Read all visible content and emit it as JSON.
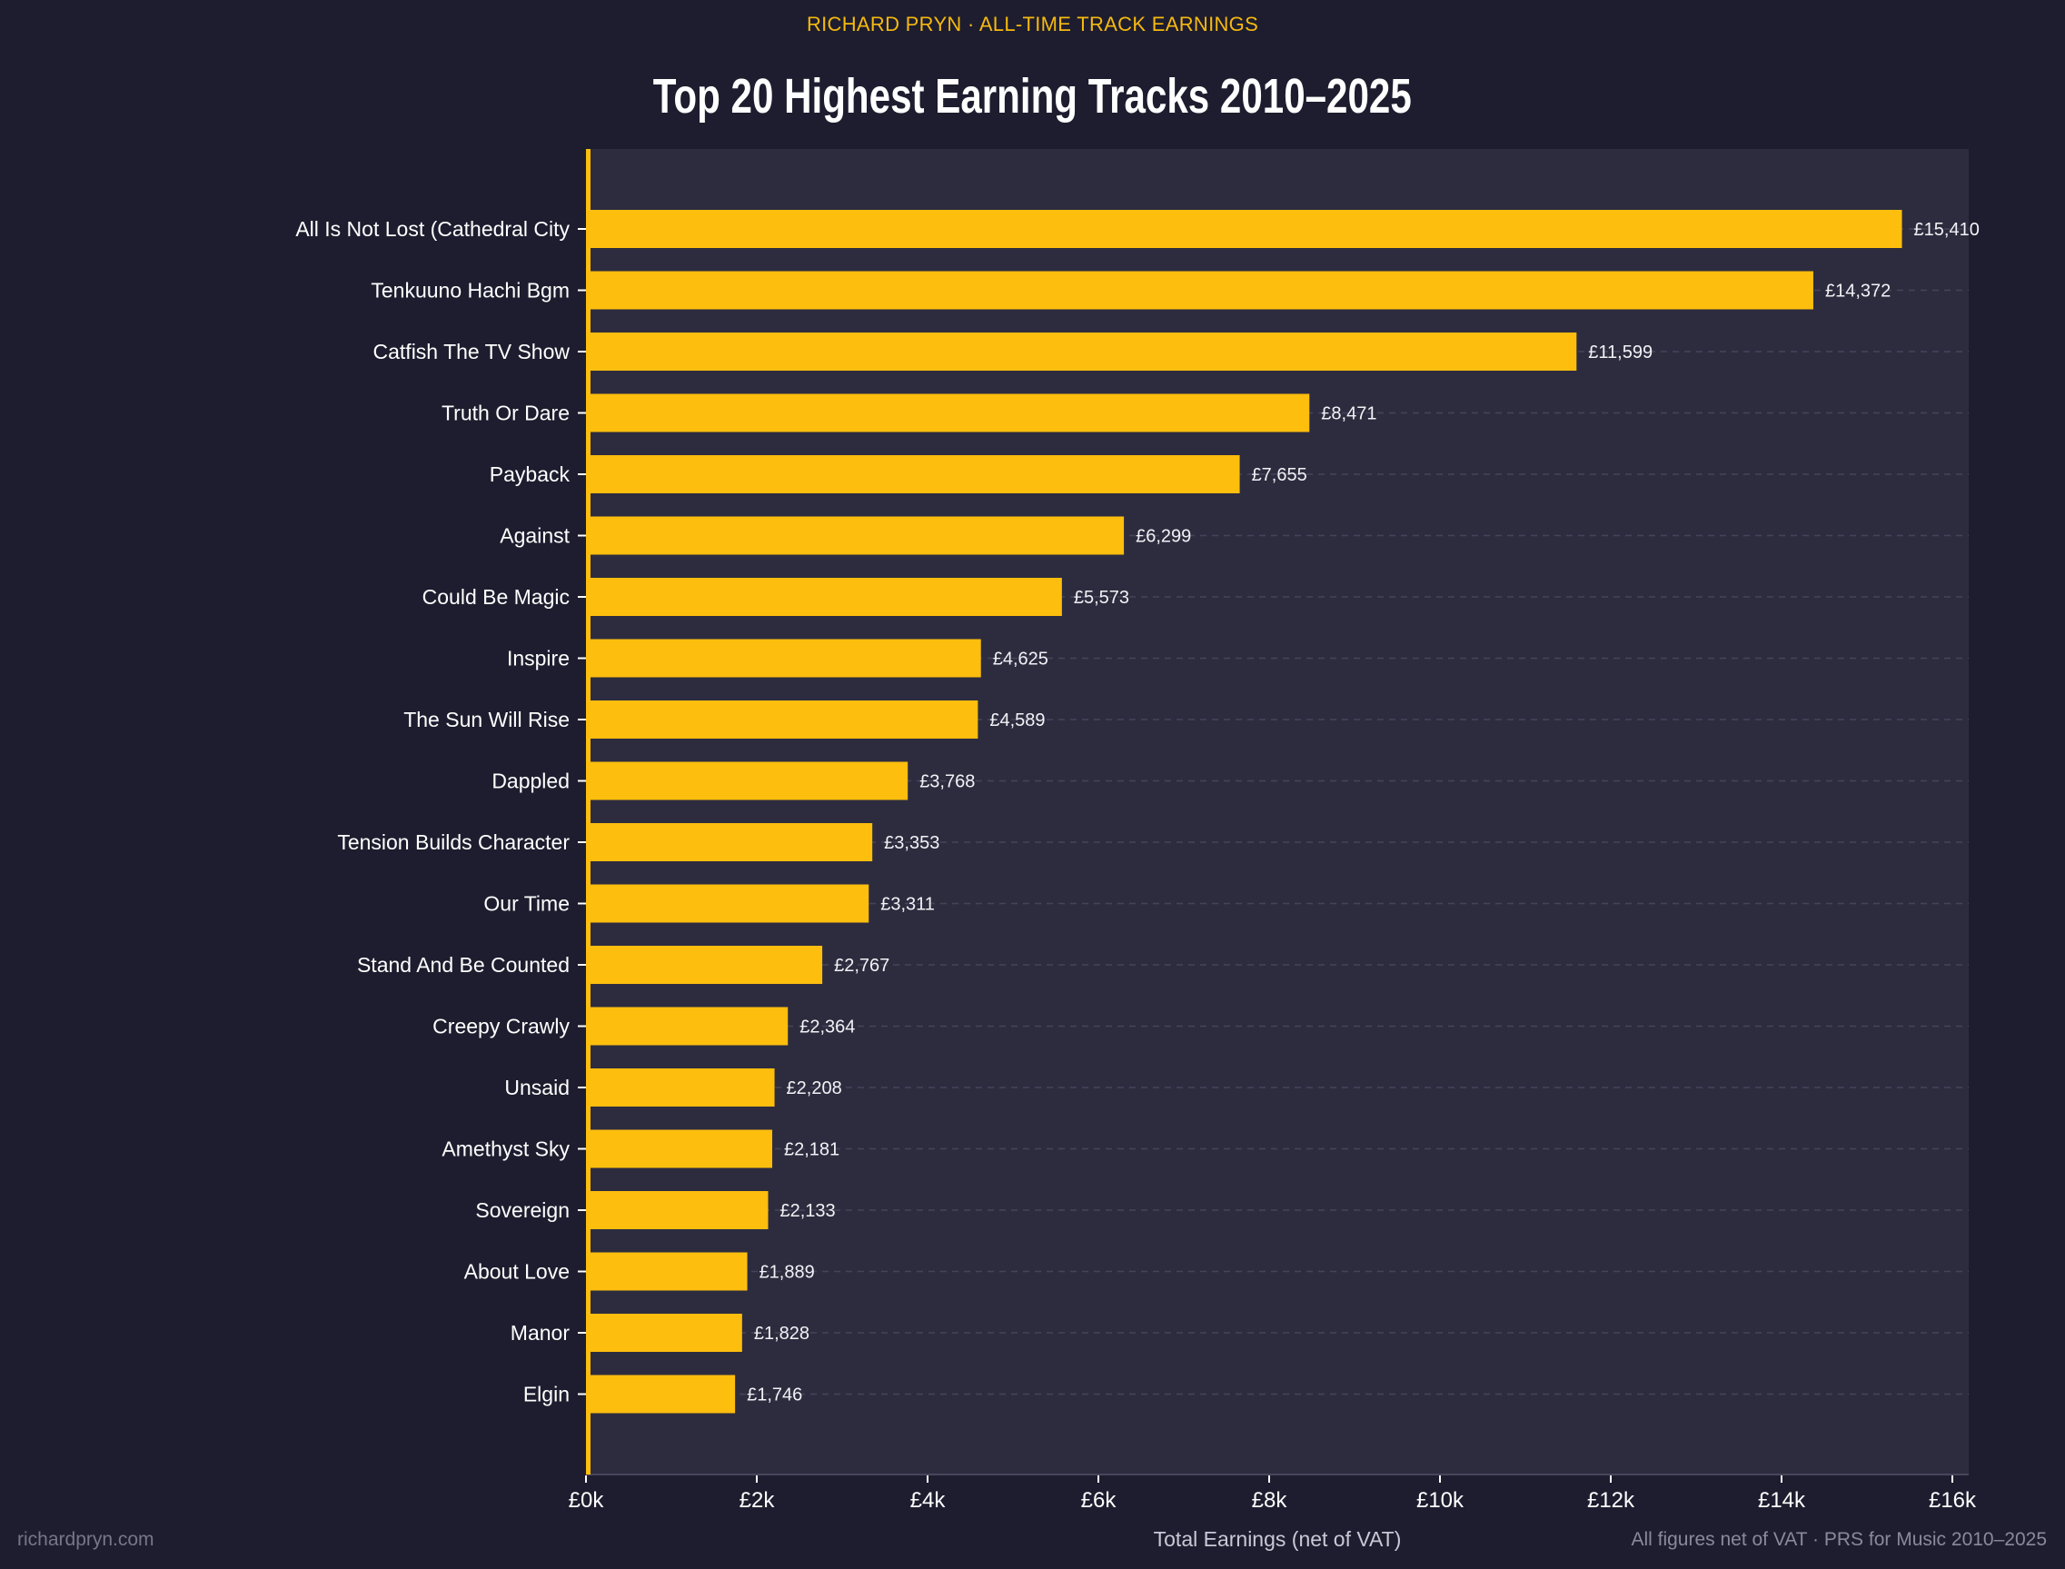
{
  "header": {
    "subtitle": "RICHARD PRYN  ·  ALL-TIME TRACK EARNINGS",
    "title": "Top 20 Highest Earning Tracks  2010–2025"
  },
  "footer": {
    "left": "richardpryn.com",
    "right": "All figures net of VAT  ·  PRS for Music 2010–2025"
  },
  "colors": {
    "page_bg": "#1e1d2f",
    "plot_bg": "#2d2c3f",
    "bar": "#fdbe0e",
    "accent_text": "#f5b90f",
    "label_text": "#ffffff",
    "grid": "#45445a"
  },
  "chart_data": {
    "type": "bar",
    "orientation": "horizontal",
    "title": "Top 20 Highest Earning Tracks  2010–2025",
    "subtitle": "RICHARD PRYN  ·  ALL-TIME TRACK EARNINGS",
    "xlabel": "Total Earnings (net of VAT)",
    "ylabel": "",
    "xlim": [
      0,
      16200
    ],
    "xticks": [
      0,
      2000,
      4000,
      6000,
      8000,
      10000,
      12000,
      14000,
      16000
    ],
    "xtick_labels": [
      "£0k",
      "£2k",
      "£4k",
      "£6k",
      "£8k",
      "£10k",
      "£12k",
      "£14k",
      "£16k"
    ],
    "grid": "dashed horizontal lines at each bar",
    "legend": "none",
    "categories": [
      "All Is Not Lost (Cathedral City",
      "Tenkuuno Hachi Bgm",
      "Catfish The TV Show",
      "Truth Or Dare",
      "Payback",
      "Against",
      "Could Be Magic",
      "Inspire",
      "The Sun Will Rise",
      "Dappled",
      "Tension Builds Character",
      "Our Time",
      "Stand And Be Counted",
      "Creepy Crawly",
      "Unsaid",
      "Amethyst Sky",
      "Sovereign",
      "About Love",
      "Manor",
      "Elgin"
    ],
    "values": [
      15410,
      14372,
      11599,
      8471,
      7655,
      6299,
      5573,
      4625,
      4589,
      3768,
      3353,
      3311,
      2767,
      2364,
      2208,
      2181,
      2133,
      1889,
      1828,
      1746
    ],
    "value_labels": [
      "£15,410",
      "£14,372",
      "£11,599",
      "£8,471",
      "£7,655",
      "£6,299",
      "£5,573",
      "£4,625",
      "£4,589",
      "£3,768",
      "£3,353",
      "£3,311",
      "£2,767",
      "£2,364",
      "£2,208",
      "£2,181",
      "£2,133",
      "£1,889",
      "£1,828",
      "£1,746"
    ]
  }
}
